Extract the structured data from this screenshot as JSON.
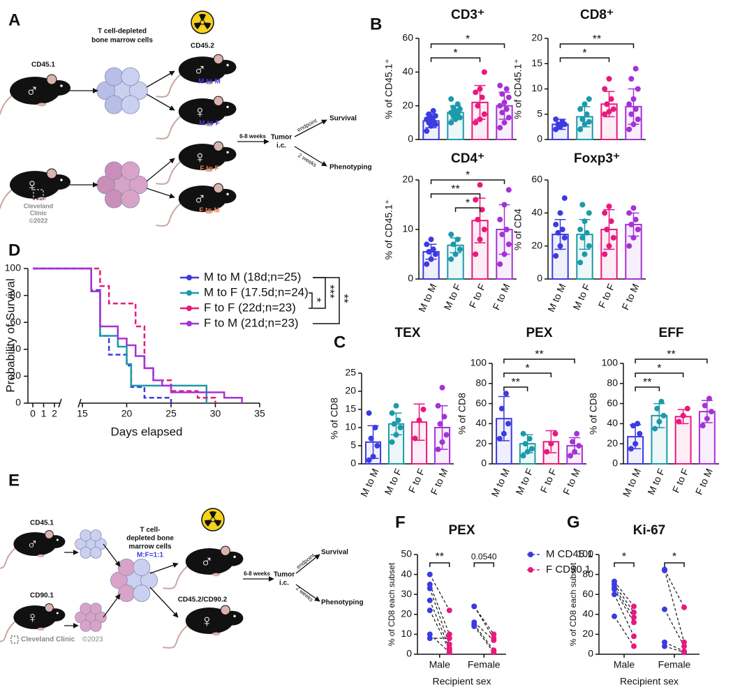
{
  "panel_letters": [
    "A",
    "B",
    "C",
    "D",
    "E",
    "F",
    "G"
  ],
  "diagram_a": {
    "donors": [
      {
        "label": "CD45.1",
        "sex": "♂"
      },
      {
        "sex": "♀"
      }
    ],
    "cells_label": [
      "T cell-depleted",
      "bone marrow cells"
    ],
    "recipient_label": "CD45.2",
    "recipients": [
      {
        "sex": "♂",
        "label": "M to M"
      },
      {
        "sex": "♀",
        "label": "M to F"
      },
      {
        "sex": "♀",
        "label": "F to F"
      },
      {
        "sex": "♂",
        "label": "F to M"
      }
    ],
    "interval": "6-8 weeks",
    "tumor": [
      "Tumor",
      "i.c."
    ],
    "branches": [
      {
        "when": "endpoint",
        "outcome": "Survival"
      },
      {
        "when": "2 weeks",
        "outcome": "Phenotyping"
      }
    ],
    "credit": [
      "Cleveland",
      "Clinic",
      "©2022"
    ]
  },
  "diagram_e": {
    "donors": [
      {
        "label": "CD45.1",
        "sex": "♂"
      },
      {
        "label": "CD90.1",
        "sex": "♀"
      }
    ],
    "cells_label": [
      "T cell-",
      "depleted bone",
      "marrow cells",
      "M:F=1:1"
    ],
    "recipient_label": "CD45.2/CD90.2",
    "recipients": [
      {
        "sex": "♂"
      },
      {
        "sex": "♀"
      }
    ],
    "interval": "6-8 weeks",
    "tumor": [
      "Tumor",
      "i.c."
    ],
    "branches": [
      {
        "when": "endpoint",
        "outcome": "Survival"
      },
      {
        "when": "2 weeks",
        "outcome": "Phenotyping"
      }
    ],
    "credit": [
      "Cleveland Clinic",
      "©2023"
    ]
  },
  "chart_data": [
    {
      "type": "bar",
      "title": "CD3⁺",
      "ylabel": "% of CD45.1⁺",
      "ylim": [
        0,
        60
      ],
      "yticks": [
        0,
        20,
        40,
        60
      ],
      "colors": [
        "#3b3be0",
        "#1b9aaa",
        "#e8197d",
        "#a532d6"
      ],
      "values": [
        11,
        16,
        22,
        20
      ],
      "errors": [
        4,
        4,
        10,
        8
      ],
      "points": [
        [
          5,
          8,
          9,
          10,
          11,
          12,
          13,
          14,
          15,
          17
        ],
        [
          10,
          12,
          13,
          14,
          15,
          16,
          17,
          18,
          19,
          21,
          24
        ],
        [
          10,
          12,
          15,
          20,
          25,
          28,
          30,
          40
        ],
        [
          7,
          10,
          13,
          16,
          18,
          20,
          22,
          25,
          27,
          30,
          32
        ]
      ],
      "brackets": [
        {
          "groups": [
            0,
            2
          ],
          "label": "*"
        },
        {
          "groups": [
            0,
            3
          ],
          "label": "*"
        }
      ]
    },
    {
      "type": "bar",
      "title": "CD8⁺",
      "ylabel": "% of CD45.1⁺",
      "ylim": [
        0,
        20
      ],
      "yticks": [
        0,
        5,
        10,
        15,
        20
      ],
      "colors": [
        "#3b3be0",
        "#1b9aaa",
        "#e8197d",
        "#a532d6"
      ],
      "values": [
        3,
        4.5,
        7,
        6.5
      ],
      "errors": [
        1,
        2,
        2.5,
        3.5
      ],
      "points": [
        [
          2,
          2.5,
          3,
          3,
          3.5,
          4
        ],
        [
          2,
          3,
          3.5,
          4,
          5,
          6,
          7,
          8
        ],
        [
          5,
          5.5,
          6,
          7,
          8,
          10,
          12
        ],
        [
          2,
          3,
          4,
          5,
          6,
          7,
          8,
          10,
          12,
          14
        ]
      ],
      "brackets": [
        {
          "groups": [
            0,
            2
          ],
          "label": "*"
        },
        {
          "groups": [
            0,
            3
          ],
          "label": "**"
        }
      ]
    },
    {
      "type": "bar",
      "title": "CD4⁺",
      "ylabel": "% of CD45.1⁺",
      "ylim": [
        0,
        20
      ],
      "yticks": [
        0,
        10,
        20
      ],
      "categories": [
        "M to M",
        "M to F",
        "F to F",
        "F to M"
      ],
      "colors": [
        "#3b3be0",
        "#1b9aaa",
        "#e8197d",
        "#a532d6"
      ],
      "values": [
        5.5,
        6.8,
        11.8,
        10
      ],
      "errors": [
        1.5,
        1.5,
        4.5,
        5
      ],
      "points": [
        [
          3,
          4,
          5,
          5.5,
          6,
          7,
          8
        ],
        [
          4,
          5,
          6,
          7,
          8,
          9
        ],
        [
          5,
          8,
          10,
          12,
          14,
          16,
          19
        ],
        [
          3,
          5,
          7,
          9,
          10,
          12,
          15,
          18
        ]
      ],
      "brackets": [
        {
          "groups": [
            0,
            2
          ],
          "label": "**"
        },
        {
          "groups": [
            1,
            2
          ],
          "label": "*"
        },
        {
          "groups": [
            0,
            3
          ],
          "label": "*"
        }
      ]
    },
    {
      "type": "bar",
      "title": "Foxp3⁺",
      "ylabel": "% of CD4",
      "ylim": [
        0,
        60
      ],
      "yticks": [
        0,
        20,
        40,
        60
      ],
      "categories": [
        "M to M",
        "M to F",
        "F to F",
        "F to M"
      ],
      "colors": [
        "#3b3be0",
        "#1b9aaa",
        "#e8197d",
        "#a532d6"
      ],
      "values": [
        27,
        27,
        30,
        33
      ],
      "errors": [
        9,
        9,
        12,
        7
      ],
      "points": [
        [
          14,
          20,
          25,
          28,
          30,
          33,
          40,
          49
        ],
        [
          10,
          15,
          20,
          25,
          28,
          30,
          35,
          40,
          45
        ],
        [
          15,
          20,
          25,
          30,
          35,
          40,
          44
        ],
        [
          20,
          25,
          30,
          33,
          36,
          40,
          43
        ]
      ],
      "brackets": []
    },
    {
      "type": "survival",
      "ylabel": "Probability of Survival",
      "xlabel": "Days elapsed",
      "ylim": [
        0,
        100
      ],
      "yticks": [
        0,
        20,
        40,
        60,
        80,
        100
      ],
      "xlim": [
        0,
        35
      ],
      "xbreak": [
        2,
        15
      ],
      "xticks": [
        0,
        1,
        2,
        15,
        20,
        25,
        30,
        35
      ],
      "series": [
        {
          "name": "M to M (18d;n=25)",
          "color": "#3b3be0",
          "dashed": true,
          "x": [
            0,
            16,
            17,
            18,
            20,
            20.5,
            22,
            25
          ],
          "values": [
            100,
            84,
            50,
            36,
            28,
            12,
            4,
            0
          ]
        },
        {
          "name": "M to F (17.5d;n=24)",
          "color": "#1b9aaa",
          "dashed": false,
          "x": [
            0,
            16,
            17,
            19,
            20,
            20.5,
            29
          ],
          "values": [
            100,
            83,
            50,
            42,
            29,
            13,
            0
          ]
        },
        {
          "name": "F to F (22d;n=23)",
          "color": "#e8197d",
          "dashed": true,
          "x": [
            0,
            17,
            18,
            21,
            22,
            23,
            25,
            28,
            30
          ],
          "values": [
            100,
            87,
            74,
            57,
            26,
            17,
            9,
            4,
            0
          ]
        },
        {
          "name": "F to M (21d;n=23)",
          "color": "#a532d6",
          "dashed": false,
          "x": [
            0,
            16,
            17,
            19,
            20,
            21,
            22,
            23,
            24,
            25,
            31,
            33
          ],
          "values": [
            100,
            83,
            57,
            48,
            43,
            35,
            26,
            17,
            13,
            8,
            4,
            0
          ]
        }
      ],
      "significance": [
        {
          "label": "*"
        },
        {
          "label": "***"
        },
        {
          "label": "**"
        }
      ]
    },
    {
      "type": "bar",
      "title": "TEX",
      "ylabel": "% of CD8",
      "ylim": [
        0,
        25
      ],
      "yticks": [
        0,
        5,
        10,
        15,
        20,
        25
      ],
      "categories": [
        "M to M",
        "M to F",
        "F to F",
        "F to M"
      ],
      "colors": [
        "#3b3be0",
        "#1b9aaa",
        "#e8197d",
        "#a532d6"
      ],
      "values": [
        6,
        11,
        11.5,
        10
      ],
      "errors": [
        4.5,
        3,
        5,
        6
      ],
      "points": [
        [
          1,
          2,
          5,
          7,
          10,
          14
        ],
        [
          6,
          8,
          10,
          11,
          12,
          14,
          16
        ],
        [
          7,
          12,
          15
        ],
        [
          4,
          6,
          8,
          11,
          13,
          16,
          21
        ]
      ],
      "brackets": []
    },
    {
      "type": "bar",
      "title": "PEX",
      "ylabel": "% of CD8",
      "ylim": [
        0,
        100
      ],
      "yticks": [
        0,
        20,
        40,
        60,
        80,
        100
      ],
      "categories": [
        "M to M",
        "M to F",
        "F to F",
        "F to M"
      ],
      "colors": [
        "#3b3be0",
        "#1b9aaa",
        "#e8197d",
        "#a532d6"
      ],
      "values": [
        45,
        20,
        22,
        18
      ],
      "errors": [
        22,
        9,
        11,
        8
      ],
      "points": [
        [
          25,
          30,
          40,
          55,
          70
        ],
        [
          8,
          12,
          15,
          20,
          25,
          30
        ],
        [
          12,
          20,
          30
        ],
        [
          8,
          12,
          18,
          22,
          30
        ]
      ],
      "brackets": [
        {
          "groups": [
            0,
            1
          ],
          "label": "**"
        },
        {
          "groups": [
            0,
            2
          ],
          "label": "*"
        },
        {
          "groups": [
            0,
            3
          ],
          "label": "**"
        }
      ]
    },
    {
      "type": "bar",
      "title": "EFF",
      "ylabel": "% of CD8",
      "ylim": [
        0,
        100
      ],
      "yticks": [
        0,
        20,
        40,
        60,
        80,
        100
      ],
      "categories": [
        "M to M",
        "M to F",
        "F to F",
        "F to M"
      ],
      "colors": [
        "#3b3be0",
        "#1b9aaa",
        "#e8197d",
        "#a532d6"
      ],
      "values": [
        27,
        48,
        47,
        52
      ],
      "errors": [
        12,
        12,
        7,
        11
      ],
      "points": [
        [
          15,
          20,
          30,
          38,
          40
        ],
        [
          35,
          42,
          48,
          55,
          62
        ],
        [
          42,
          48,
          55
        ],
        [
          38,
          45,
          52,
          58,
          65
        ]
      ],
      "brackets": [
        {
          "groups": [
            0,
            1
          ],
          "label": "**"
        },
        {
          "groups": [
            0,
            2
          ],
          "label": "*"
        },
        {
          "groups": [
            0,
            3
          ],
          "label": "**"
        }
      ]
    },
    {
      "type": "paired",
      "title": "PEX",
      "ylabel": "% of CD8 each subset",
      "xlabel": "Recipient sex",
      "ylim": [
        0,
        50
      ],
      "yticks": [
        0,
        10,
        20,
        30,
        40,
        50
      ],
      "categories": [
        "Male",
        "Female"
      ],
      "series": [
        {
          "name": "M CD45.1",
          "color": "#3b3be0",
          "values": [
            [
              40,
              35,
              33,
              27,
              22,
              10,
              8
            ],
            [
              24,
              24,
              16,
              15,
              14
            ]
          ]
        },
        {
          "name": "F CD90.1",
          "color": "#e8197d",
          "values": [
            [
              22,
              10,
              5,
              3,
              2,
              1,
              8
            ],
            [
              10,
              8,
              7,
              2,
              1
            ]
          ]
        }
      ],
      "brackets": [
        {
          "category": 0,
          "label": "**"
        },
        {
          "category": 1,
          "label": "0.0540"
        }
      ]
    },
    {
      "type": "paired",
      "title": "Ki-67",
      "ylabel": "% of CD8 each subset",
      "xlabel": "Recipient sex",
      "ylim": [
        0,
        100
      ],
      "yticks": [
        0,
        20,
        40,
        60,
        80,
        100
      ],
      "categories": [
        "Male",
        "Female"
      ],
      "series": [
        {
          "color": "#3b3be0",
          "values": [
            [
              73,
              70,
              67,
              65,
              60,
              38
            ],
            [
              85,
              84,
              45,
              12,
              8
            ]
          ]
        },
        {
          "color": "#e8197d",
          "values": [
            [
              48,
              42,
              37,
              32,
              18,
              8
            ],
            [
              47,
              12,
              8,
              3,
              2
            ]
          ]
        }
      ],
      "brackets": [
        {
          "category": 0,
          "label": "*"
        },
        {
          "category": 1,
          "label": "*"
        }
      ]
    }
  ]
}
